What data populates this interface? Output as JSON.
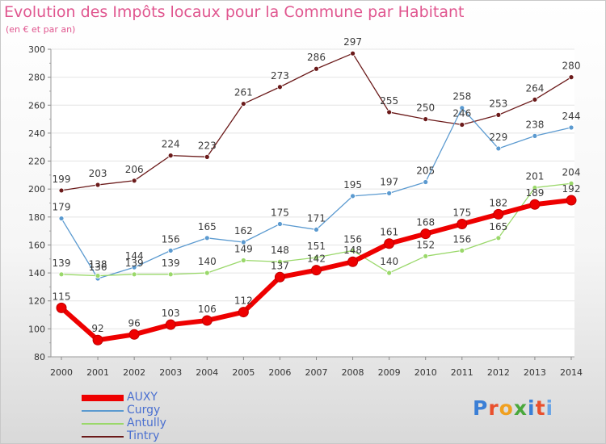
{
  "title": "Evolution des Impôts locaux pour la Commune par Habitant",
  "subtitle": "(en € et par an)",
  "logo": "Proxiti",
  "chart_data": {
    "type": "line",
    "x": [
      "2000",
      "2001",
      "2002",
      "2003",
      "2004",
      "2005",
      "2006",
      "2007",
      "2008",
      "2009",
      "2010",
      "2011",
      "2012",
      "2013",
      "2014"
    ],
    "ylim": [
      80,
      300
    ],
    "yticks": [
      "80",
      "100",
      "120",
      "140",
      "160",
      "180",
      "200",
      "220",
      "240",
      "260",
      "280",
      "300"
    ],
    "grid": "horizontal",
    "legend_position": "bottom-left",
    "series": [
      {
        "name": "Tintry",
        "color": "#6b1a1a",
        "width": 1.3,
        "values": [
          199,
          203,
          206,
          224,
          223,
          261,
          273,
          286,
          297,
          255,
          250,
          246,
          253,
          264,
          280
        ]
      },
      {
        "name": "Curgy",
        "color": "#5b9ad0",
        "width": 1.3,
        "values": [
          179,
          136,
          144,
          156,
          165,
          162,
          175,
          171,
          195,
          197,
          205,
          258,
          229,
          238,
          244
        ]
      },
      {
        "name": "Antully",
        "color": "#9ad86a",
        "width": 1.3,
        "values": [
          139,
          138,
          139,
          139,
          140,
          149,
          148,
          151,
          156,
          140,
          152,
          156,
          165,
          201,
          204
        ]
      },
      {
        "name": "AUXY",
        "color": "#ee0000",
        "width": 6,
        "values": [
          115,
          92,
          96,
          103,
          106,
          112,
          137,
          142,
          148,
          161,
          168,
          175,
          182,
          189,
          192
        ]
      }
    ],
    "legend_order": [
      "AUXY",
      "Curgy",
      "Antully",
      "Tintry"
    ]
  }
}
